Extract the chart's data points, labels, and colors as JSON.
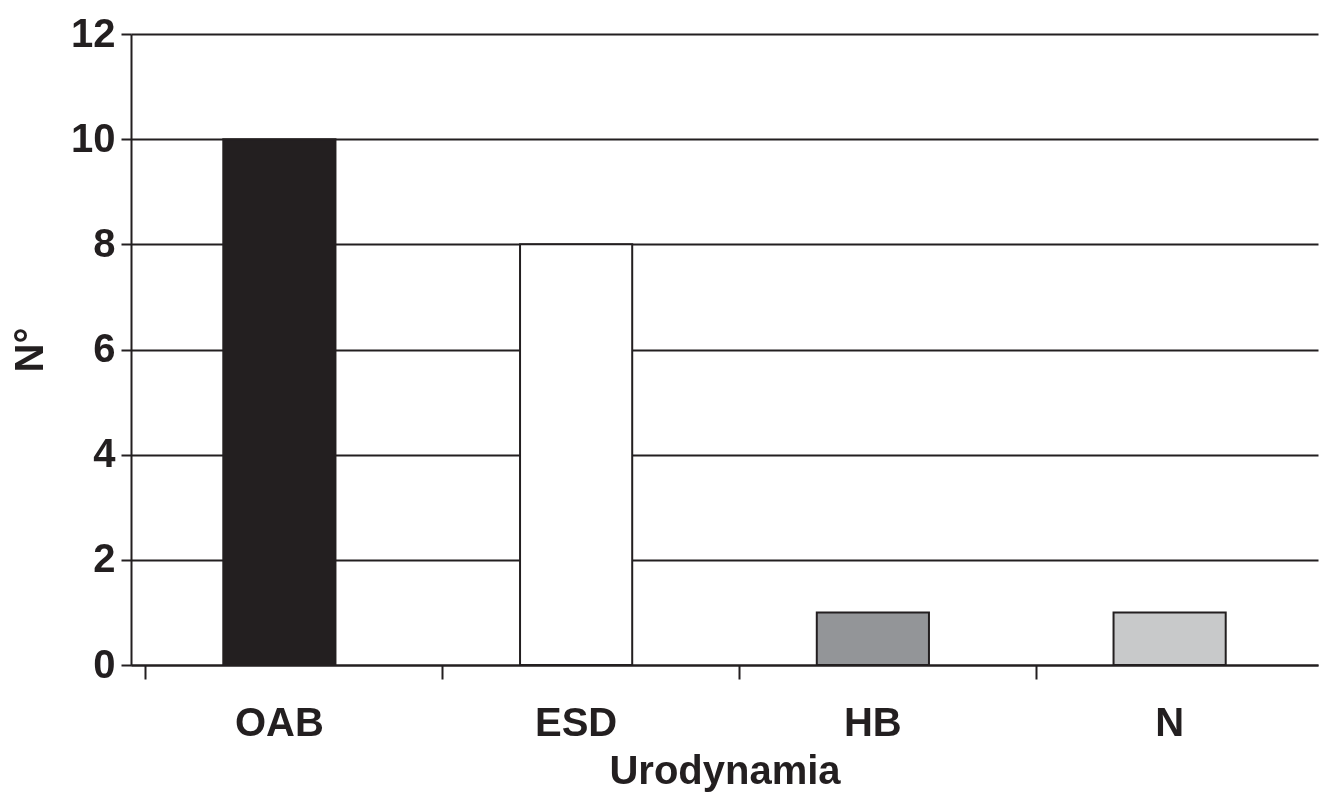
{
  "chart_data": {
    "type": "bar",
    "xlabel": "Urodynamia",
    "ylabel": "N°",
    "categories": [
      "OAB",
      "ESD",
      "HB",
      "N"
    ],
    "values": [
      10,
      8,
      1,
      1
    ],
    "colors": [
      "#231f20",
      "#ffffff",
      "#939598",
      "#c8c9ca"
    ],
    "ylim": [
      0,
      12
    ],
    "yticks": [
      0,
      2,
      4,
      6,
      8,
      10,
      12
    ],
    "grid": "y"
  }
}
